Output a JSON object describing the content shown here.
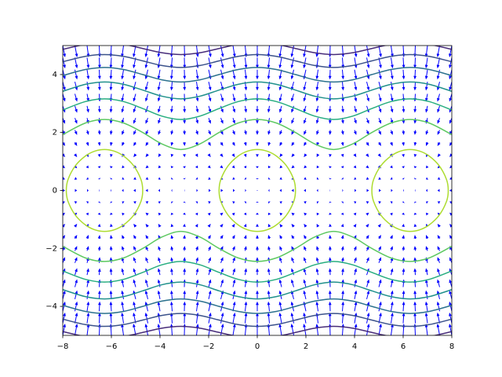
{
  "chart_data": {
    "type": "contour",
    "xlim": [
      -8,
      8
    ],
    "ylim": [
      -5,
      5
    ],
    "xticks": [
      {
        "value": -8,
        "label": "−8"
      },
      {
        "value": -6,
        "label": "−6"
      },
      {
        "value": -4,
        "label": "−4"
      },
      {
        "value": -2,
        "label": "−2"
      },
      0,
      2,
      4,
      6,
      8
    ],
    "yticks": [
      {
        "value": -4,
        "label": "−4"
      },
      {
        "value": -2,
        "label": "−2"
      },
      0,
      2,
      4
    ],
    "contours": [
      {
        "color": "#472c7a",
        "closed": false,
        "x": [
          -8,
          -7.069,
          -6.283,
          -5.498,
          -4.712,
          -3.927,
          -3.142,
          -2.356,
          -1.571,
          -0.785,
          0,
          0.785,
          1.571,
          2.356,
          3.142,
          3.927,
          4.712,
          5.498,
          6.283,
          7.069,
          8
        ],
        "y": [
          4.869,
          5.041,
          5.099,
          5.041,
          4.899,
          4.752,
          4.69,
          4.752,
          4.899,
          5.041,
          5.099,
          5.041,
          4.899,
          4.752,
          4.69,
          4.752,
          4.899,
          5.041,
          5.099,
          5.041,
          4.869
        ]
      },
      {
        "color": "#472c7a",
        "closed": false,
        "x": [
          -8,
          -7.069,
          -6.283,
          -5.498,
          -4.712,
          -3.927,
          -3.142,
          -2.356,
          -1.571,
          -0.785,
          0,
          0.785,
          1.571,
          2.356,
          3.142,
          3.927,
          4.712,
          5.498,
          6.283,
          7.069,
          8
        ],
        "y": [
          -4.869,
          -5.041,
          -5.099,
          -5.041,
          -4.899,
          -4.752,
          -4.69,
          -4.752,
          -4.899,
          -5.041,
          -5.099,
          -5.041,
          -4.899,
          -4.752,
          -4.69,
          -4.752,
          -4.899,
          -5.041,
          -5.099,
          -5.041,
          -4.869
        ]
      },
      {
        "color": "#3b528b",
        "closed": false,
        "x": [
          -8,
          -7.069,
          -6.283,
          -5.498,
          -4.712,
          -3.927,
          -3.142,
          -2.356,
          -1.571,
          -0.785,
          0,
          0.785,
          1.571,
          2.356,
          3.142,
          3.927,
          4.712,
          5.498,
          6.283,
          7.069,
          8
        ],
        "y": [
          4.44,
          4.628,
          4.69,
          4.628,
          4.472,
          4.311,
          4.243,
          4.311,
          4.472,
          4.628,
          4.69,
          4.628,
          4.472,
          4.311,
          4.243,
          4.311,
          4.472,
          4.628,
          4.69,
          4.628,
          4.44
        ]
      },
      {
        "color": "#3b528b",
        "closed": false,
        "x": [
          -8,
          -7.069,
          -6.283,
          -5.498,
          -4.712,
          -3.927,
          -3.142,
          -2.356,
          -1.571,
          -0.785,
          0,
          0.785,
          1.571,
          2.356,
          3.142,
          3.927,
          4.712,
          5.498,
          6.283,
          7.069,
          8
        ],
        "y": [
          -4.44,
          -4.628,
          -4.69,
          -4.628,
          -4.472,
          -4.311,
          -4.243,
          -4.311,
          -4.472,
          -4.628,
          -4.69,
          -4.628,
          -4.472,
          -4.311,
          -4.243,
          -4.311,
          -4.472,
          -4.628,
          -4.69,
          -4.628,
          -4.44
        ]
      },
      {
        "color": "#2c728e",
        "closed": false,
        "x": [
          -8,
          -7.069,
          -6.283,
          -5.498,
          -4.712,
          -3.927,
          -3.142,
          -2.356,
          -1.571,
          -0.785,
          0,
          0.785,
          1.571,
          2.356,
          3.142,
          3.927,
          4.712,
          5.498,
          6.283,
          7.069,
          8
        ],
        "y": [
          3.963,
          4.173,
          4.243,
          4.173,
          4,
          3.819,
          3.742,
          3.819,
          4,
          4.173,
          4.243,
          4.173,
          4,
          3.819,
          3.742,
          3.819,
          4,
          4.173,
          4.243,
          4.173,
          3.963
        ]
      },
      {
        "color": "#2c728e",
        "closed": false,
        "x": [
          -8,
          -7.069,
          -6.283,
          -5.498,
          -4.712,
          -3.927,
          -3.142,
          -2.356,
          -1.571,
          -0.785,
          0,
          0.785,
          1.571,
          2.356,
          3.142,
          3.927,
          4.712,
          5.498,
          6.283,
          7.069,
          8
        ],
        "y": [
          -3.963,
          -4.173,
          -4.243,
          -4.173,
          -4,
          -3.819,
          -3.742,
          -3.819,
          -4,
          -4.173,
          -4.243,
          -4.173,
          -4,
          -3.819,
          -3.742,
          -3.819,
          -4,
          -4.173,
          -4.243,
          -4.173,
          -3.963
        ]
      },
      {
        "color": "#21918c",
        "closed": false,
        "x": [
          -8,
          -7.069,
          -6.283,
          -5.498,
          -4.712,
          -3.927,
          -3.142,
          -2.356,
          -1.571,
          -0.785,
          0,
          0.785,
          1.571,
          2.356,
          3.142,
          3.927,
          4.712,
          5.498,
          6.283,
          7.069,
          8
        ],
        "y": [
          3.422,
          3.663,
          3.742,
          3.663,
          3.464,
          3.254,
          3.162,
          3.254,
          3.464,
          3.663,
          3.742,
          3.663,
          3.464,
          3.254,
          3.162,
          3.254,
          3.464,
          3.663,
          3.742,
          3.663,
          3.422
        ]
      },
      {
        "color": "#21918c",
        "closed": false,
        "x": [
          -8,
          -7.069,
          -6.283,
          -5.498,
          -4.712,
          -3.927,
          -3.142,
          -2.356,
          -1.571,
          -0.785,
          0,
          0.785,
          1.571,
          2.356,
          3.142,
          3.927,
          4.712,
          5.498,
          6.283,
          7.069,
          8
        ],
        "y": [
          -3.422,
          -3.663,
          -3.742,
          -3.663,
          -3.464,
          -3.254,
          -3.162,
          -3.254,
          -3.464,
          -3.663,
          -3.742,
          -3.663,
          -3.464,
          -3.254,
          -3.162,
          -3.254,
          -3.464,
          -3.663,
          -3.742,
          -3.663,
          -3.422
        ]
      },
      {
        "color": "#28ae80",
        "closed": false,
        "x": [
          -8,
          -7.069,
          -6.283,
          -5.498,
          -4.712,
          -3.927,
          -3.142,
          -2.356,
          -1.571,
          -0.785,
          0,
          0.785,
          1.571,
          2.356,
          3.142,
          3.927,
          4.712,
          5.498,
          6.283,
          7.069,
          8
        ],
        "y": [
          2.777,
          3.068,
          3.162,
          3.068,
          2.828,
          2.566,
          2.449,
          2.566,
          2.828,
          3.068,
          3.162,
          3.068,
          2.828,
          2.566,
          2.449,
          2.566,
          2.828,
          3.068,
          3.162,
          3.068,
          2.777
        ]
      },
      {
        "color": "#28ae80",
        "closed": false,
        "x": [
          -8,
          -7.069,
          -6.283,
          -5.498,
          -4.712,
          -3.927,
          -3.142,
          -2.356,
          -1.571,
          -0.785,
          0,
          0.785,
          1.571,
          2.356,
          3.142,
          3.927,
          4.712,
          5.498,
          6.283,
          7.069,
          8
        ],
        "y": [
          -2.777,
          -3.068,
          -3.162,
          -3.068,
          -2.828,
          -2.566,
          -2.449,
          -2.566,
          -2.828,
          -3.068,
          -3.162,
          -3.068,
          -2.828,
          -2.566,
          -2.449,
          -2.566,
          -2.828,
          -3.068,
          -3.162,
          -3.068,
          -2.777
        ]
      },
      {
        "color": "#5ec962",
        "closed": false,
        "x": [
          -8,
          -7.069,
          -6.283,
          -5.498,
          -4.712,
          -3.927,
          -3.142,
          -2.356,
          -1.571,
          -0.785,
          0,
          0.785,
          1.571,
          2.356,
          3.142,
          3.927,
          4.712,
          5.498,
          6.283,
          7.069,
          8
        ],
        "y": [
          1.926,
          2.327,
          2.449,
          2.327,
          2,
          1.608,
          1.414,
          1.608,
          2,
          2.327,
          2.449,
          2.327,
          2,
          1.608,
          1.414,
          1.608,
          2,
          2.327,
          2.449,
          2.327,
          1.926
        ]
      },
      {
        "color": "#5ec962",
        "closed": false,
        "x": [
          -8,
          -7.069,
          -6.283,
          -5.498,
          -4.712,
          -3.927,
          -3.142,
          -2.356,
          -1.571,
          -0.785,
          0,
          0.785,
          1.571,
          2.356,
          3.142,
          3.927,
          4.712,
          5.498,
          6.283,
          7.069,
          8
        ],
        "y": [
          -1.926,
          -2.327,
          -2.449,
          -2.327,
          -2,
          -1.608,
          -1.414,
          -1.608,
          -2,
          -2.327,
          -2.449,
          -2.327,
          -2,
          -1.608,
          -1.414,
          -1.608,
          -2,
          -2.327,
          -2.449,
          -2.327,
          -1.926
        ]
      },
      {
        "color": "#addc30",
        "closed": true,
        "x": [
          -1.571,
          -1.5,
          -1.2,
          -0.785,
          -0.4,
          0,
          0.4,
          0.785,
          1.2,
          1.5,
          1.571,
          1.5,
          1.2,
          0.785,
          0.4,
          0,
          -0.4,
          -0.785,
          -1.2,
          -1.5
        ],
        "y": [
          0,
          0.376,
          0.851,
          1.189,
          1.357,
          1.414,
          1.357,
          1.189,
          0.851,
          0.376,
          0,
          -0.376,
          -0.851,
          -1.189,
          -1.357,
          -1.414,
          -1.357,
          -1.189,
          -0.851,
          -0.376
        ]
      },
      {
        "color": "#addc30",
        "closed": true,
        "x": [
          -7.854,
          -7.783,
          -7.483,
          -7.068,
          -6.683,
          -6.283,
          -5.883,
          -5.498,
          -5.083,
          -4.783,
          -4.712,
          -4.783,
          -5.083,
          -5.498,
          -5.883,
          -6.283,
          -6.683,
          -7.068,
          -7.483,
          -7.783
        ],
        "y": [
          0,
          0.376,
          0.851,
          1.189,
          1.357,
          1.414,
          1.357,
          1.189,
          0.851,
          0.376,
          0,
          -0.376,
          -0.851,
          -1.189,
          -1.357,
          -1.414,
          -1.357,
          -1.189,
          -0.851,
          -0.376
        ]
      },
      {
        "color": "#addc30",
        "closed": true,
        "x": [
          4.712,
          4.783,
          5.083,
          5.498,
          5.883,
          6.283,
          6.683,
          7.068,
          7.483,
          7.783,
          7.854,
          7.783,
          7.483,
          7.068,
          6.683,
          6.283,
          5.883,
          5.498,
          5.083,
          4.783
        ],
        "y": [
          0,
          0.376,
          0.851,
          1.189,
          1.357,
          1.414,
          1.357,
          1.189,
          0.851,
          0.376,
          0,
          -0.376,
          -0.851,
          -1.189,
          -1.357,
          -1.414,
          -1.357,
          -1.189,
          -0.851,
          -0.376
        ]
      }
    ],
    "quiver": {
      "color": "#0000ff",
      "x": [
        -8,
        -7.5,
        -7,
        -6.5,
        -6,
        -5.5,
        -5,
        -4.5,
        -4,
        -3.5,
        -3,
        -2.5,
        -2,
        -1.5,
        -1,
        -0.5,
        0,
        0.5,
        1,
        1.5,
        2,
        2.5,
        3,
        3.5,
        4,
        4.5,
        5,
        5.5,
        6,
        6.5,
        7,
        7.5,
        8
      ],
      "u": [
        0.989,
        0.938,
        0.657,
        0.215,
        -0.279,
        -0.706,
        -0.959,
        -0.978,
        -0.757,
        -0.351,
        0.141,
        0.598,
        0.909,
        0.997,
        0.841,
        0.479,
        0,
        -0.479,
        -0.841,
        -0.997,
        -0.909,
        -0.598,
        -0.141,
        0.351,
        0.757,
        0.978,
        0.959,
        0.706,
        0.279,
        -0.215,
        -0.657,
        -0.938,
        -0.989
      ],
      "y": [
        -5,
        -4.583,
        -4.167,
        -3.75,
        -3.333,
        -2.917,
        -2.5,
        -2.083,
        -1.667,
        -1.25,
        -0.833,
        -0.417,
        0,
        0.417,
        0.833,
        1.25,
        1.667,
        2.083,
        2.5,
        2.917,
        3.333,
        3.75,
        4.167,
        4.583,
        5
      ],
      "v": [
        5,
        4.583,
        4.167,
        3.75,
        3.333,
        2.917,
        2.5,
        2.083,
        1.667,
        1.25,
        0.833,
        0.417,
        0,
        -0.417,
        -0.833,
        -1.25,
        -1.667,
        -2.083,
        -2.5,
        -2.917,
        -3.333,
        -3.75,
        -4.167,
        -4.583,
        -5
      ]
    }
  }
}
